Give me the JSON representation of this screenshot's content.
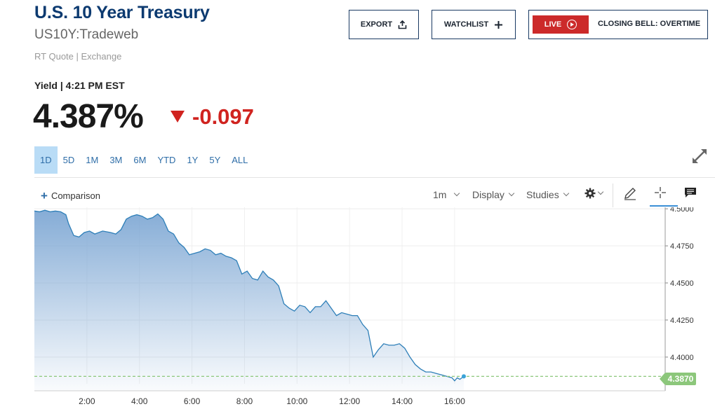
{
  "header": {
    "title": "U.S. 10 Year Treasury",
    "symbol": "US10Y:Tradeweb",
    "rt_quote": "RT Quote | Exchange"
  },
  "buttons": {
    "export": "EXPORT",
    "watchlist": "WATCHLIST",
    "live": "LIVE",
    "closing_bell": "CLOSING BELL: OVERTIME"
  },
  "quote": {
    "yield_label": "Yield | 4:21 PM EST",
    "price": "4.387%",
    "change": "-0.097",
    "change_color": "#d0231f"
  },
  "ranges": [
    "1D",
    "5D",
    "1M",
    "3M",
    "6M",
    "YTD",
    "1Y",
    "5Y",
    "ALL"
  ],
  "active_range": "1D",
  "toolbar": {
    "comparison": "Comparison",
    "interval": "1m",
    "display": "Display",
    "studies": "Studies"
  },
  "chart_data": {
    "type": "area",
    "x_tick_labels": [
      "2:00",
      "4:00",
      "6:00",
      "8:00",
      "10:00",
      "12:00",
      "14:00",
      "16:00"
    ],
    "y_tick_labels": [
      "4.5000",
      "4.4750",
      "4.4500",
      "4.4250",
      "4.4000"
    ],
    "ylim": [
      4.382,
      4.501
    ],
    "xlim": [
      0,
      16.35
    ],
    "current_value_label": "4.3870",
    "current_value": 4.387,
    "line_color": "#2e7fb8",
    "fill_color": "#7fa8d4",
    "x": [
      0,
      0.2,
      0.4,
      0.6,
      0.8,
      1.0,
      1.2,
      1.3,
      1.5,
      1.7,
      1.9,
      2.1,
      2.3,
      2.6,
      2.9,
      3.1,
      3.3,
      3.5,
      3.7,
      3.9,
      4.1,
      4.3,
      4.5,
      4.7,
      4.9,
      5.1,
      5.3,
      5.5,
      5.7,
      5.9,
      6.1,
      6.3,
      6.5,
      6.7,
      6.9,
      7.1,
      7.3,
      7.5,
      7.7,
      7.9,
      8.1,
      8.3,
      8.5,
      8.7,
      8.9,
      9.1,
      9.3,
      9.5,
      9.7,
      9.9,
      10.1,
      10.3,
      10.5,
      10.7,
      10.9,
      11.1,
      11.3,
      11.5,
      11.7,
      11.9,
      12.1,
      12.3,
      12.5,
      12.7,
      12.9,
      13.1,
      13.3,
      13.5,
      13.7,
      13.9,
      14.1,
      14.3,
      14.5,
      14.7,
      14.9,
      15.1,
      15.3,
      15.5,
      15.7,
      15.9,
      16.0,
      16.1,
      16.2,
      16.35
    ],
    "y": [
      4.4985,
      4.498,
      4.499,
      4.498,
      4.4985,
      4.498,
      4.496,
      4.49,
      4.482,
      4.481,
      4.484,
      4.485,
      4.483,
      4.485,
      4.484,
      4.483,
      4.486,
      4.493,
      4.495,
      4.496,
      4.495,
      4.493,
      4.494,
      4.4965,
      4.493,
      4.485,
      4.483,
      4.477,
      4.474,
      4.469,
      4.47,
      4.471,
      4.473,
      4.472,
      4.469,
      4.47,
      4.468,
      4.467,
      4.465,
      4.456,
      4.458,
      4.453,
      4.452,
      4.458,
      4.454,
      4.452,
      4.448,
      4.436,
      4.433,
      4.431,
      4.435,
      4.434,
      4.43,
      4.434,
      4.434,
      4.438,
      4.433,
      4.428,
      4.43,
      4.429,
      4.428,
      4.428,
      4.422,
      4.418,
      4.4,
      4.405,
      4.409,
      4.408,
      4.408,
      4.409,
      4.406,
      4.4,
      4.395,
      4.392,
      4.39,
      4.39,
      4.389,
      4.388,
      4.387,
      4.386,
      4.384,
      4.386,
      4.385,
      4.387
    ]
  }
}
